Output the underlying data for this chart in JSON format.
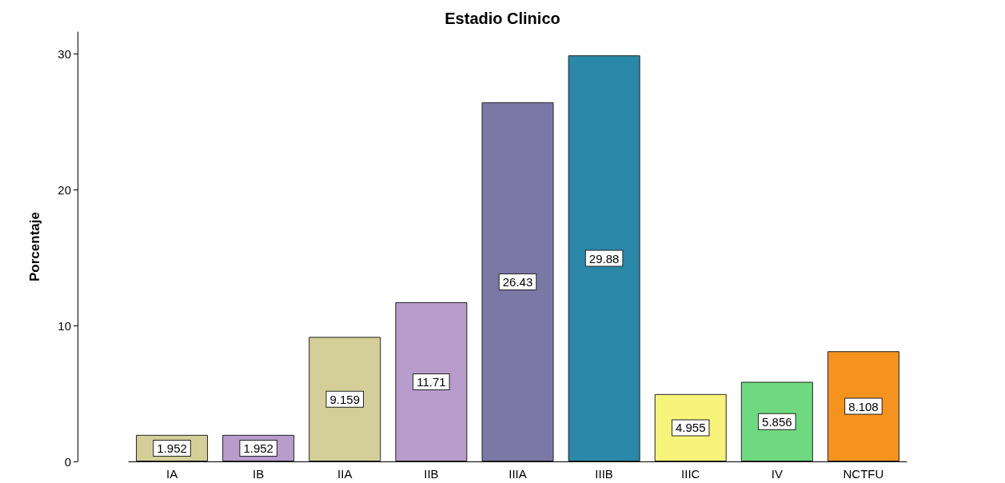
{
  "chart_data": {
    "type": "bar",
    "title": "Estadio Clinico",
    "ylabel": "Porcentaje",
    "categories": [
      "IA",
      "IB",
      "IIA",
      "IIB",
      "IIIA",
      "IIIB",
      "IIIC",
      "IV",
      "NCTFU"
    ],
    "values": [
      1.952,
      1.952,
      9.159,
      11.71,
      26.43,
      29.88,
      4.955,
      5.856,
      8.108
    ],
    "colors": [
      "#d4cf98",
      "#b89ccc",
      "#d4cf98",
      "#b89ccc",
      "#7b78a6",
      "#2a88a8",
      "#f8f47a",
      "#6fd97f",
      "#f5931e"
    ],
    "ylim": [
      0,
      31.6
    ],
    "yticks": [
      0,
      10,
      20,
      30
    ],
    "grid": false,
    "data_labels": true
  }
}
